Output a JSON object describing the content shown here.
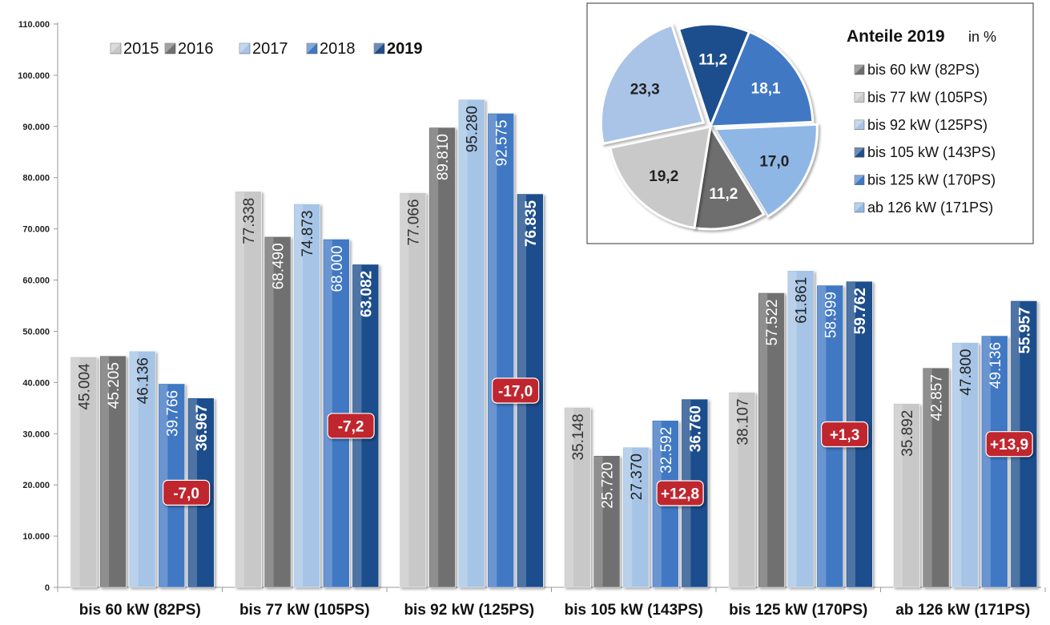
{
  "chart_data": [
    {
      "type": "bar",
      "categories": [
        "bis 60 kW (82PS)",
        "bis 77 kW (105PS)",
        "bis 92 kW (125PS)",
        "bis 105 kW (143PS)",
        "bis 125 kW (170PS)",
        "ab 126 kW (171PS)"
      ],
      "series": [
        {
          "name": "2015",
          "values": [
            45004,
            77338,
            77066,
            35148,
            38107,
            35892
          ],
          "labels": [
            "45.004",
            "77.338",
            "77.066",
            "35.148",
            "38.107",
            "35.892"
          ],
          "color": "#c8c8c8",
          "label_color": "#333333",
          "bold": false
        },
        {
          "name": "2016",
          "values": [
            45205,
            68490,
            89810,
            25720,
            57522,
            42857
          ],
          "labels": [
            "45.205",
            "68.490",
            "89.810",
            "25.720",
            "57.522",
            "42.857"
          ],
          "color": "#707070",
          "label_color": "#ffffff",
          "bold": false
        },
        {
          "name": "2017",
          "values": [
            46136,
            74873,
            95280,
            27370,
            61861,
            47800
          ],
          "labels": [
            "46.136",
            "74.873",
            "95.280",
            "27.370",
            "61.861",
            "47.800"
          ],
          "color": "#a6c4e6",
          "label_color": "#222222",
          "bold": false
        },
        {
          "name": "2018",
          "values": [
            39766,
            68000,
            92575,
            32592,
            58999,
            49136
          ],
          "labels": [
            "39.766",
            "68.000",
            "92.575",
            "32.592",
            "58.999",
            "49.136"
          ],
          "color": "#3f78c4",
          "label_color": "#ffffff",
          "bold": false
        },
        {
          "name": "2019",
          "values": [
            36967,
            63082,
            76835,
            36760,
            59762,
            55957
          ],
          "labels": [
            "36.967",
            "63.082",
            "76.835",
            "36.760",
            "59.762",
            "55.957"
          ],
          "color": "#1f4e8c",
          "label_color": "#ffffff",
          "bold": true
        }
      ],
      "change_labels": [
        "-7,0",
        "-7,2",
        "-17,0",
        "+12,8",
        "+1,3",
        "+13,9"
      ],
      "change_values": [
        -7.0,
        -7.2,
        -17.0,
        12.8,
        1.3,
        13.9
      ],
      "change_color": "#c0272d",
      "ylim": [
        0,
        110000
      ],
      "y_ticks": [
        0,
        10000,
        20000,
        30000,
        40000,
        50000,
        60000,
        70000,
        80000,
        90000,
        100000,
        110000
      ],
      "y_tick_labels": [
        "0",
        "10.000",
        "20.000",
        "30.000",
        "40.000",
        "50.000",
        "60.000",
        "70.000",
        "80.000",
        "90.000",
        "100.000",
        "110.000"
      ],
      "legend_position": "top-left",
      "grid": false
    },
    {
      "type": "pie",
      "title": "Anteile 2019",
      "title_suffix": "in %",
      "slices": [
        {
          "name": "bis 60 kW (82PS)",
          "value": 11.2,
          "label": "11,2",
          "color": "#6e6e6e",
          "label_color": "#ffffff"
        },
        {
          "name": "bis 77 kW (105PS)",
          "value": 19.2,
          "label": "19,2",
          "color": "#c9c9c9",
          "label_color": "#222222"
        },
        {
          "name": "bis 92 kW (125PS)",
          "value": 23.3,
          "label": "23,3",
          "color": "#a9c4e6",
          "label_color": "#222222"
        },
        {
          "name": "bis 105 kW (143PS)",
          "value": 11.2,
          "label": "11,2",
          "color": "#1f4e8c",
          "label_color": "#ffffff"
        },
        {
          "name": "bis 125 kW (170PS)",
          "value": 18.1,
          "label": "18,1",
          "color": "#3f78c4",
          "label_color": "#ffffff"
        },
        {
          "name": "ab 126 kW (171PS)",
          "value": 17.0,
          "label": "17,0",
          "color": "#8fb7e6",
          "label_color": "#222222"
        }
      ],
      "legend_position": "right"
    }
  ]
}
